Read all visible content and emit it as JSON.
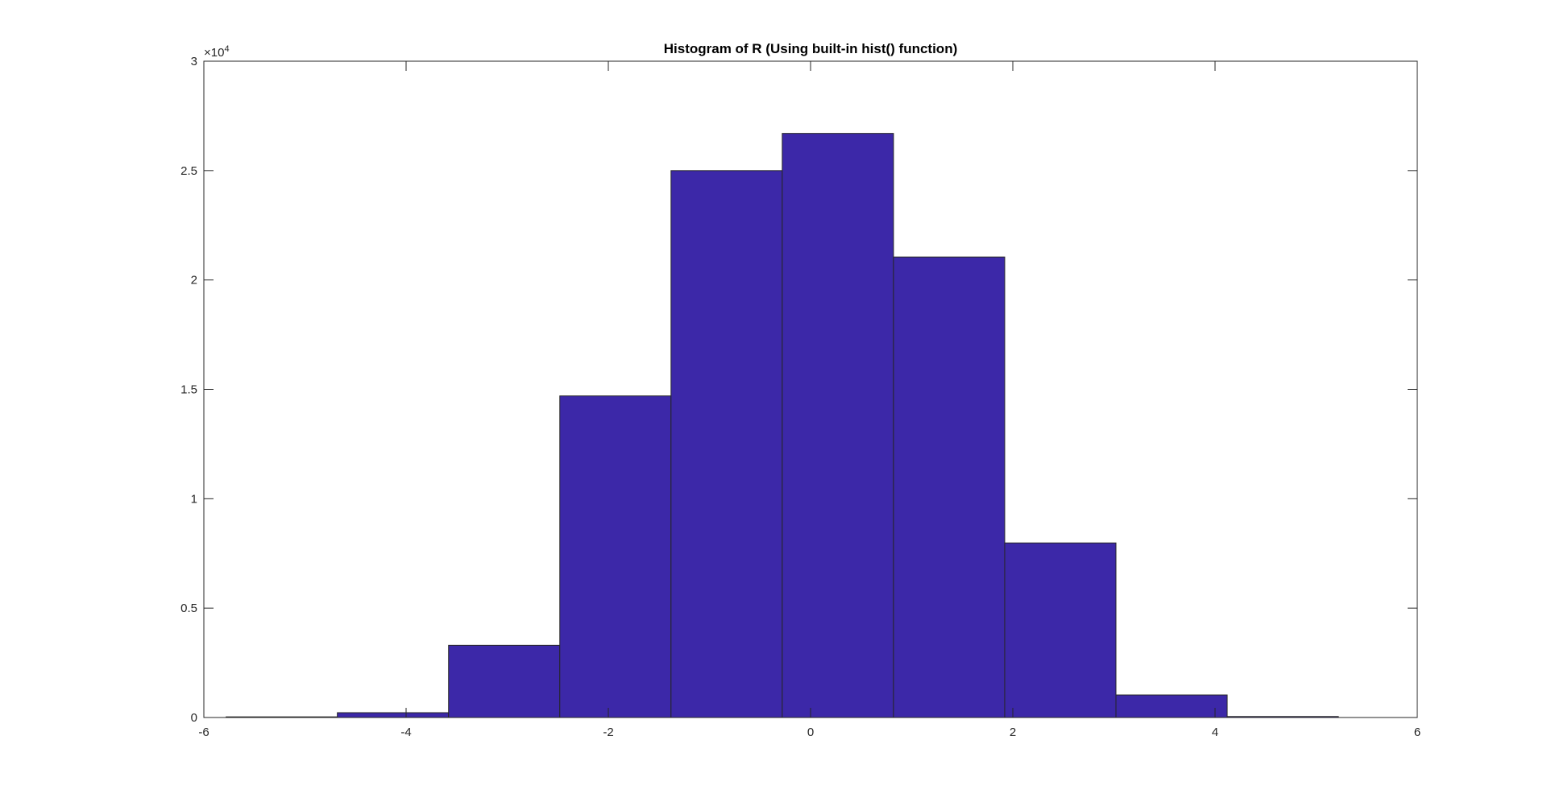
{
  "chart_data": {
    "type": "bar",
    "title": "Histogram of R (Using built-in hist() function)",
    "xlabel": "",
    "ylabel": "",
    "xlim": [
      -6,
      6
    ],
    "ylim": [
      0,
      30000
    ],
    "x_ticks": [
      "-6",
      "-4",
      "-2",
      "0",
      "2",
      "4",
      "6"
    ],
    "x_tick_values": [
      -6,
      -4,
      -2,
      0,
      2,
      4,
      6
    ],
    "y_ticks": [
      "0",
      "0.5",
      "1",
      "1.5",
      "2",
      "2.5",
      "3"
    ],
    "y_tick_values": [
      0,
      5000,
      10000,
      15000,
      20000,
      25000,
      30000
    ],
    "y_exponent_base": "×10",
    "y_exponent_power": "4",
    "bin_edges": [
      -5.78,
      -4.68,
      -3.58,
      -2.48,
      -1.38,
      -0.28,
      0.82,
      1.92,
      3.02,
      4.12,
      5.22
    ],
    "values": [
      30,
      220,
      3300,
      14700,
      25000,
      26700,
      21050,
      7980,
      1030,
      45
    ],
    "bar_color": "#3c28a8",
    "edge_color": "#262626",
    "grid": false,
    "box": true
  }
}
